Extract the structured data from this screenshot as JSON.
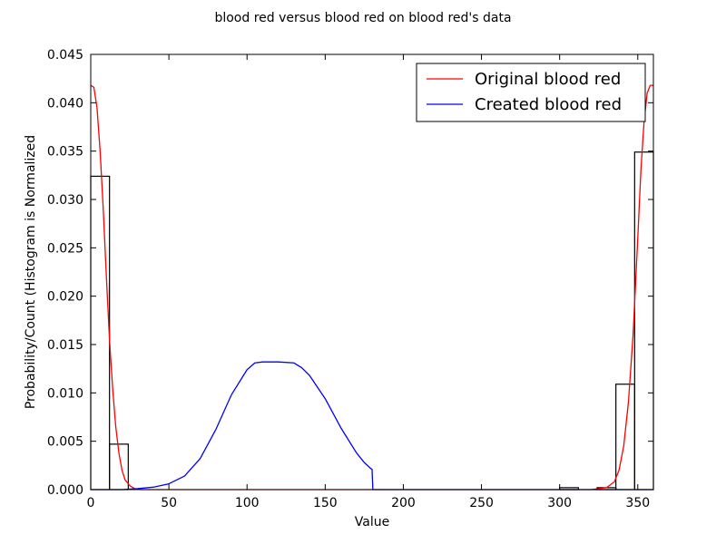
{
  "chart_data": {
    "type": "line",
    "title": "blood red versus blood red on blood red's data",
    "xlabel": "Value",
    "ylabel": "Probability/Count (Histogram is Normalized",
    "xlim": [
      0,
      360
    ],
    "ylim": [
      0,
      0.045
    ],
    "xticks": [
      0,
      50,
      100,
      150,
      200,
      250,
      300,
      350
    ],
    "yticks": [
      0.0,
      0.005,
      0.01,
      0.015,
      0.02,
      0.025,
      0.03,
      0.035,
      0.04,
      0.045
    ],
    "xtick_labels": [
      "0",
      "50",
      "100",
      "150",
      "200",
      "250",
      "300",
      "350"
    ],
    "ytick_labels": [
      "0.000",
      "0.005",
      "0.010",
      "0.015",
      "0.020",
      "0.025",
      "0.030",
      "0.035",
      "0.040",
      "0.045"
    ],
    "grid": false,
    "legend_position": "top-right",
    "histogram": {
      "bins": [
        {
          "x0": 0,
          "x1": 12,
          "height": 0.0324
        },
        {
          "x0": 12,
          "x1": 24,
          "height": 0.0047
        },
        {
          "x0": 300,
          "x1": 312,
          "height": 0.0002
        },
        {
          "x0": 324,
          "x1": 336,
          "height": 0.0002
        },
        {
          "x0": 336,
          "x1": 348,
          "height": 0.0109
        },
        {
          "x0": 348,
          "x1": 360,
          "height": 0.0349
        }
      ],
      "edge_color": "#000000"
    },
    "series": [
      {
        "name": "Original blood red",
        "color": "#ff0000",
        "x": [
          0,
          2,
          4,
          6,
          8,
          10,
          12,
          14,
          16,
          18,
          20,
          22,
          25,
          28,
          32,
          40,
          60,
          100,
          150,
          200,
          250,
          300,
          320,
          330,
          335,
          338,
          341,
          344,
          347,
          350,
          352,
          354,
          356,
          358,
          360
        ],
        "y": [
          0.0418,
          0.0416,
          0.0395,
          0.035,
          0.029,
          0.022,
          0.0155,
          0.0105,
          0.0065,
          0.0038,
          0.002,
          0.001,
          0.0004,
          0.0001,
          0.0,
          0.0,
          0.0,
          0.0,
          0.0,
          0.0,
          0.0,
          0.0,
          0.0,
          0.0002,
          0.0008,
          0.002,
          0.0045,
          0.009,
          0.016,
          0.026,
          0.033,
          0.038,
          0.041,
          0.0418,
          0.0418
        ]
      },
      {
        "name": "Created blood red",
        "color": "#0000ff",
        "x": [
          0,
          20,
          30,
          40,
          50,
          60,
          70,
          80,
          90,
          100,
          105,
          110,
          115,
          120,
          130,
          135,
          140,
          150,
          160,
          170,
          175,
          179,
          180,
          180.5,
          200,
          300,
          360
        ],
        "y": [
          0.0,
          0.0,
          0.0001,
          0.00025,
          0.0006,
          0.0014,
          0.0032,
          0.0062,
          0.0098,
          0.0124,
          0.0131,
          0.0132,
          0.0132,
          0.0132,
          0.0131,
          0.0126,
          0.0118,
          0.0094,
          0.0064,
          0.0038,
          0.0028,
          0.0022,
          0.0021,
          0.0,
          0.0,
          0.0,
          0.0
        ]
      }
    ]
  }
}
